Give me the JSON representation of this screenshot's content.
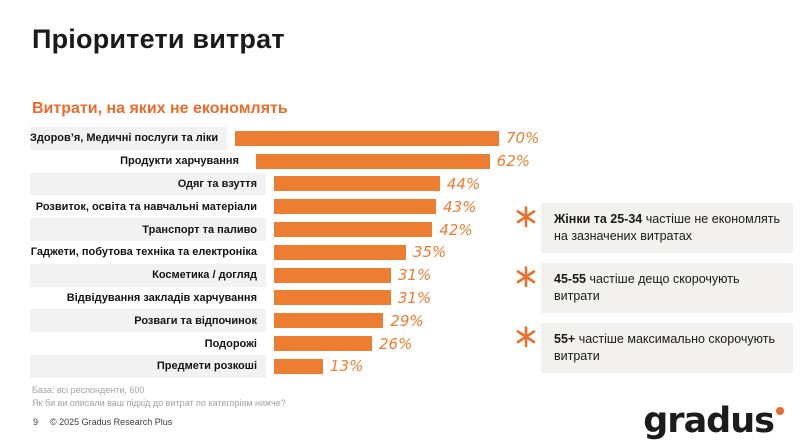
{
  "slide": {
    "title": "Пріоритети витрат",
    "subtitle": "Витрати, на яких не економлять",
    "page_number": "9",
    "copyright": "© 2025 Gradus Research Plus",
    "base_note": "База: всі респонденти, 600",
    "question_note": "Як би ви описали ваш підхід до витрат по категоріям нижче?",
    "logo_text": "gradus"
  },
  "chart_data": {
    "type": "bar",
    "orientation": "horizontal",
    "title": "Витрати, на яких не економлять",
    "categories": [
      "Здоров’я, Медичні послуги та ліки",
      "Продукти харчування",
      "Одяг та взуття",
      "Розвиток, освіта та навчальні матеріали",
      "Транспорт та паливо",
      "Гаджети, побутова техніка та електроніка",
      "Косметика / догляд",
      "Відвідування закладів харчування",
      "Розваги та відпочинок",
      "Подорожі",
      "Предмети розкоші"
    ],
    "values": [
      70,
      62,
      44,
      43,
      42,
      35,
      31,
      31,
      29,
      26,
      13
    ],
    "value_suffix": "%",
    "xlim": [
      0,
      100
    ],
    "grid": false,
    "legend": false,
    "bar_color": "#ED7D31",
    "data_label_style": "italic-orange-right-of-bar"
  },
  "callouts": [
    {
      "bold": "Жінки та 25-34",
      "rest": " частіше не економлять на зазначених витратах"
    },
    {
      "bold": "45-55",
      "rest": " частіше дещо скорочують витрати"
    },
    {
      "bold": "55+",
      "rest": " частіше максимально скорочують витрати"
    }
  ],
  "colors": {
    "accent_orange": "#ED7D31",
    "stripe_gray": "#F2F2F2",
    "callout_bg": "#F3F1EE",
    "note_gray": "#A3A3A3"
  }
}
